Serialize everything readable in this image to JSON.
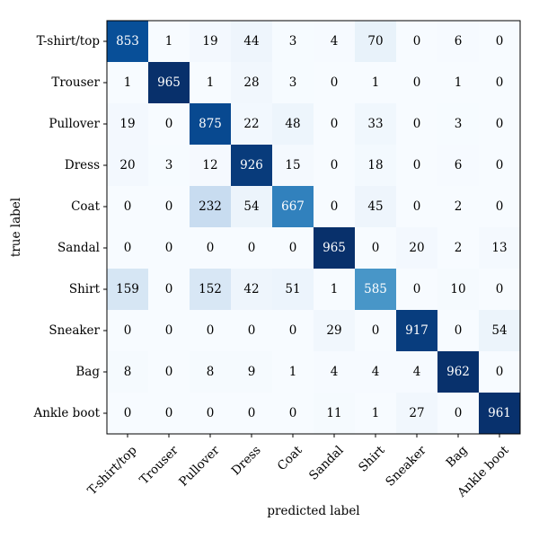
{
  "chart_data": {
    "type": "heatmap",
    "title": "",
    "xlabel": "predicted label",
    "ylabel": "true label",
    "colormap": "Blues",
    "value_range": [
      0,
      965
    ],
    "categories": [
      "T-shirt/top",
      "Trouser",
      "Pullover",
      "Dress",
      "Coat",
      "Sandal",
      "Shirt",
      "Sneaker",
      "Bag",
      "Ankle boot"
    ],
    "matrix": [
      [
        853,
        1,
        19,
        44,
        3,
        4,
        70,
        0,
        6,
        0
      ],
      [
        1,
        965,
        1,
        28,
        3,
        0,
        1,
        0,
        1,
        0
      ],
      [
        19,
        0,
        875,
        22,
        48,
        0,
        33,
        0,
        3,
        0
      ],
      [
        20,
        3,
        12,
        926,
        15,
        0,
        18,
        0,
        6,
        0
      ],
      [
        0,
        0,
        232,
        54,
        667,
        0,
        45,
        0,
        2,
        0
      ],
      [
        0,
        0,
        0,
        0,
        0,
        965,
        0,
        20,
        2,
        13
      ],
      [
        159,
        0,
        152,
        42,
        51,
        1,
        585,
        0,
        10,
        0
      ],
      [
        0,
        0,
        0,
        0,
        0,
        29,
        0,
        917,
        0,
        54
      ],
      [
        8,
        0,
        8,
        9,
        1,
        4,
        4,
        4,
        962,
        0
      ],
      [
        0,
        0,
        0,
        0,
        0,
        11,
        1,
        27,
        0,
        961
      ]
    ]
  }
}
